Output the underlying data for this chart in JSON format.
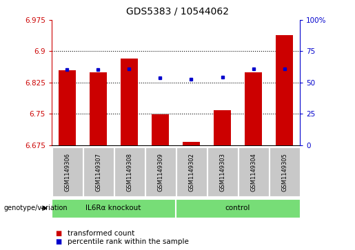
{
  "title": "GDS5383 / 10544062",
  "samples": [
    "GSM1149306",
    "GSM1149307",
    "GSM1149308",
    "GSM1149309",
    "GSM1149302",
    "GSM1149303",
    "GSM1149304",
    "GSM1149305"
  ],
  "red_values": [
    6.855,
    6.85,
    6.882,
    6.748,
    6.683,
    6.758,
    6.85,
    6.938
  ],
  "blue_values": [
    6.856,
    6.856,
    6.858,
    6.836,
    6.833,
    6.838,
    6.857,
    6.858
  ],
  "y_min": 6.675,
  "y_max": 6.975,
  "y_ticks": [
    6.675,
    6.75,
    6.825,
    6.9,
    6.975
  ],
  "y_tick_labels": [
    "6.675",
    "6.75",
    "6.825",
    "6.9",
    "6.975"
  ],
  "right_y_ticks": [
    0,
    25,
    50,
    75,
    100
  ],
  "right_y_tick_labels": [
    "0",
    "25",
    "50",
    "75",
    "100%"
  ],
  "group1_label": "IL6Rα knockout",
  "group2_label": "control",
  "bar_color": "#cc0000",
  "dot_color": "#0000cc",
  "group_color": "#77dd77",
  "left_axis_color": "#cc0000",
  "right_axis_color": "#0000cc",
  "bg_xtick": "#c8c8c8",
  "legend_red_label": "transformed count",
  "legend_blue_label": "percentile rank within the sample",
  "genotype_label": "genotype/variation",
  "title_fontsize": 10,
  "tick_fontsize": 7.5,
  "label_fontsize": 7.5,
  "legend_fontsize": 7.5
}
